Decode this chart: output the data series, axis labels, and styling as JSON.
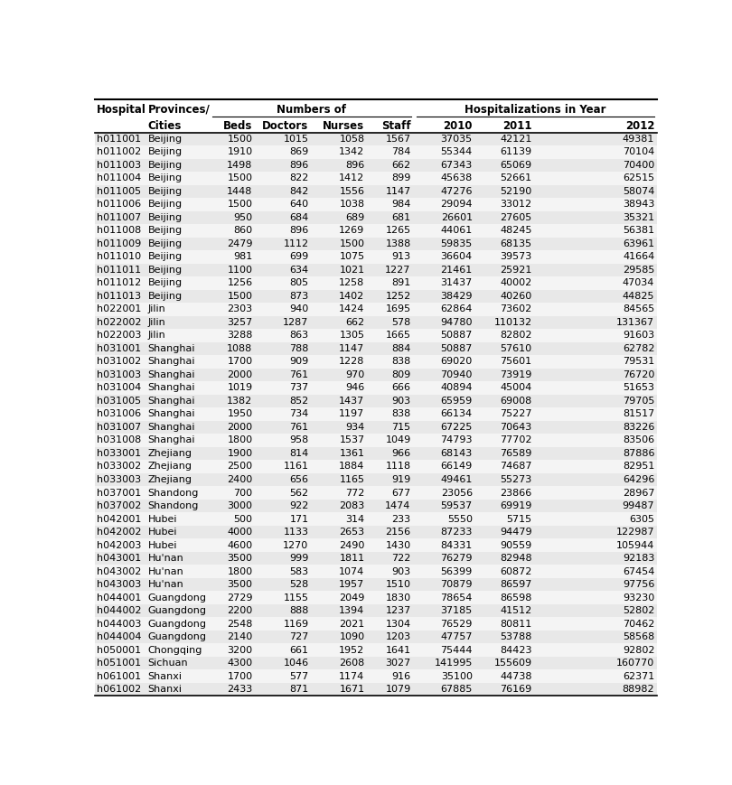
{
  "rows": [
    [
      "h011001",
      "Beijing",
      "1500",
      "1015",
      "1058",
      "1567",
      "37035",
      "42121",
      "49381"
    ],
    [
      "h011002",
      "Beijing",
      "1910",
      "869",
      "1342",
      "784",
      "55344",
      "61139",
      "70104"
    ],
    [
      "h011003",
      "Beijing",
      "1498",
      "896",
      "896",
      "662",
      "67343",
      "65069",
      "70400"
    ],
    [
      "h011004",
      "Beijing",
      "1500",
      "822",
      "1412",
      "899",
      "45638",
      "52661",
      "62515"
    ],
    [
      "h011005",
      "Beijing",
      "1448",
      "842",
      "1556",
      "1147",
      "47276",
      "52190",
      "58074"
    ],
    [
      "h011006",
      "Beijing",
      "1500",
      "640",
      "1038",
      "984",
      "29094",
      "33012",
      "38943"
    ],
    [
      "h011007",
      "Beijing",
      "950",
      "684",
      "689",
      "681",
      "26601",
      "27605",
      "35321"
    ],
    [
      "h011008",
      "Beijing",
      "860",
      "896",
      "1269",
      "1265",
      "44061",
      "48245",
      "56381"
    ],
    [
      "h011009",
      "Beijing",
      "2479",
      "1112",
      "1500",
      "1388",
      "59835",
      "68135",
      "63961"
    ],
    [
      "h011010",
      "Beijing",
      "981",
      "699",
      "1075",
      "913",
      "36604",
      "39573",
      "41664"
    ],
    [
      "h011011",
      "Beijing",
      "1100",
      "634",
      "1021",
      "1227",
      "21461",
      "25921",
      "29585"
    ],
    [
      "h011012",
      "Beijing",
      "1256",
      "805",
      "1258",
      "891",
      "31437",
      "40002",
      "47034"
    ],
    [
      "h011013",
      "Beijing",
      "1500",
      "873",
      "1402",
      "1252",
      "38429",
      "40260",
      "44825"
    ],
    [
      "h022001",
      "Jilin",
      "2303",
      "940",
      "1424",
      "1695",
      "62864",
      "73602",
      "84565"
    ],
    [
      "h022002",
      "Jilin",
      "3257",
      "1287",
      "662",
      "578",
      "94780",
      "110132",
      "131367"
    ],
    [
      "h022003",
      "Jilin",
      "3288",
      "863",
      "1305",
      "1665",
      "50887",
      "82802",
      "91603"
    ],
    [
      "h031001",
      "Shanghai",
      "1088",
      "788",
      "1147",
      "884",
      "50887",
      "57610",
      "62782"
    ],
    [
      "h031002",
      "Shanghai",
      "1700",
      "909",
      "1228",
      "838",
      "69020",
      "75601",
      "79531"
    ],
    [
      "h031003",
      "Shanghai",
      "2000",
      "761",
      "970",
      "809",
      "70940",
      "73919",
      "76720"
    ],
    [
      "h031004",
      "Shanghai",
      "1019",
      "737",
      "946",
      "666",
      "40894",
      "45004",
      "51653"
    ],
    [
      "h031005",
      "Shanghai",
      "1382",
      "852",
      "1437",
      "903",
      "65959",
      "69008",
      "79705"
    ],
    [
      "h031006",
      "Shanghai",
      "1950",
      "734",
      "1197",
      "838",
      "66134",
      "75227",
      "81517"
    ],
    [
      "h031007",
      "Shanghai",
      "2000",
      "761",
      "934",
      "715",
      "67225",
      "70643",
      "83226"
    ],
    [
      "h031008",
      "Shanghai",
      "1800",
      "958",
      "1537",
      "1049",
      "74793",
      "77702",
      "83506"
    ],
    [
      "h033001",
      "Zhejiang",
      "1900",
      "814",
      "1361",
      "966",
      "68143",
      "76589",
      "87886"
    ],
    [
      "h033002",
      "Zhejiang",
      "2500",
      "1161",
      "1884",
      "1118",
      "66149",
      "74687",
      "82951"
    ],
    [
      "h033003",
      "Zhejiang",
      "2400",
      "656",
      "1165",
      "919",
      "49461",
      "55273",
      "64296"
    ],
    [
      "h037001",
      "Shandong",
      "700",
      "562",
      "772",
      "677",
      "23056",
      "23866",
      "28967"
    ],
    [
      "h037002",
      "Shandong",
      "3000",
      "922",
      "2083",
      "1474",
      "59537",
      "69919",
      "99487"
    ],
    [
      "h042001",
      "Hubei",
      "500",
      "171",
      "314",
      "233",
      "5550",
      "5715",
      "6305"
    ],
    [
      "h042002",
      "Hubei",
      "4000",
      "1133",
      "2653",
      "2156",
      "87233",
      "94479",
      "122987"
    ],
    [
      "h042003",
      "Hubei",
      "4600",
      "1270",
      "2490",
      "1430",
      "84331",
      "90559",
      "105944"
    ],
    [
      "h043001",
      "Hu'nan",
      "3500",
      "999",
      "1811",
      "722",
      "76279",
      "82948",
      "92183"
    ],
    [
      "h043002",
      "Hu'nan",
      "1800",
      "583",
      "1074",
      "903",
      "56399",
      "60872",
      "67454"
    ],
    [
      "h043003",
      "Hu'nan",
      "3500",
      "528",
      "1957",
      "1510",
      "70879",
      "86597",
      "97756"
    ],
    [
      "h044001",
      "Guangdong",
      "2729",
      "1155",
      "2049",
      "1830",
      "78654",
      "86598",
      "93230"
    ],
    [
      "h044002",
      "Guangdong",
      "2200",
      "888",
      "1394",
      "1237",
      "37185",
      "41512",
      "52802"
    ],
    [
      "h044003",
      "Guangdong",
      "2548",
      "1169",
      "2021",
      "1304",
      "76529",
      "80811",
      "70462"
    ],
    [
      "h044004",
      "Guangdong",
      "2140",
      "727",
      "1090",
      "1203",
      "47757",
      "53788",
      "58568"
    ],
    [
      "h050001",
      "Chongqing",
      "3200",
      "661",
      "1952",
      "1641",
      "75444",
      "84423",
      "92802"
    ],
    [
      "h051001",
      "Sichuan",
      "4300",
      "1046",
      "2608",
      "3027",
      "141995",
      "155609",
      "160770"
    ],
    [
      "h061001",
      "Shanxi",
      "1700",
      "577",
      "1174",
      "916",
      "35100",
      "44738",
      "62371"
    ],
    [
      "h061002",
      "Shanxi",
      "2433",
      "871",
      "1671",
      "1079",
      "67885",
      "76169",
      "88982"
    ]
  ],
  "col_aligns": [
    "left",
    "left",
    "right",
    "right",
    "right",
    "right",
    "right",
    "right",
    "right"
  ],
  "header1_labels": [
    "Hospital",
    "Provinces/",
    "Numbers of",
    "Hospitalizations in Year"
  ],
  "subheader_labels": [
    "",
    "Cities",
    "Beds",
    "Doctors",
    "Nurses",
    "Staff",
    "2010",
    "2011",
    "2012"
  ],
  "odd_row_bg": "#e8e8e8",
  "even_row_bg": "#f4f4f4",
  "header_font_size": 8.5,
  "data_font_size": 8.0,
  "figsize": [
    8.1,
    8.69
  ],
  "dpi": 100
}
